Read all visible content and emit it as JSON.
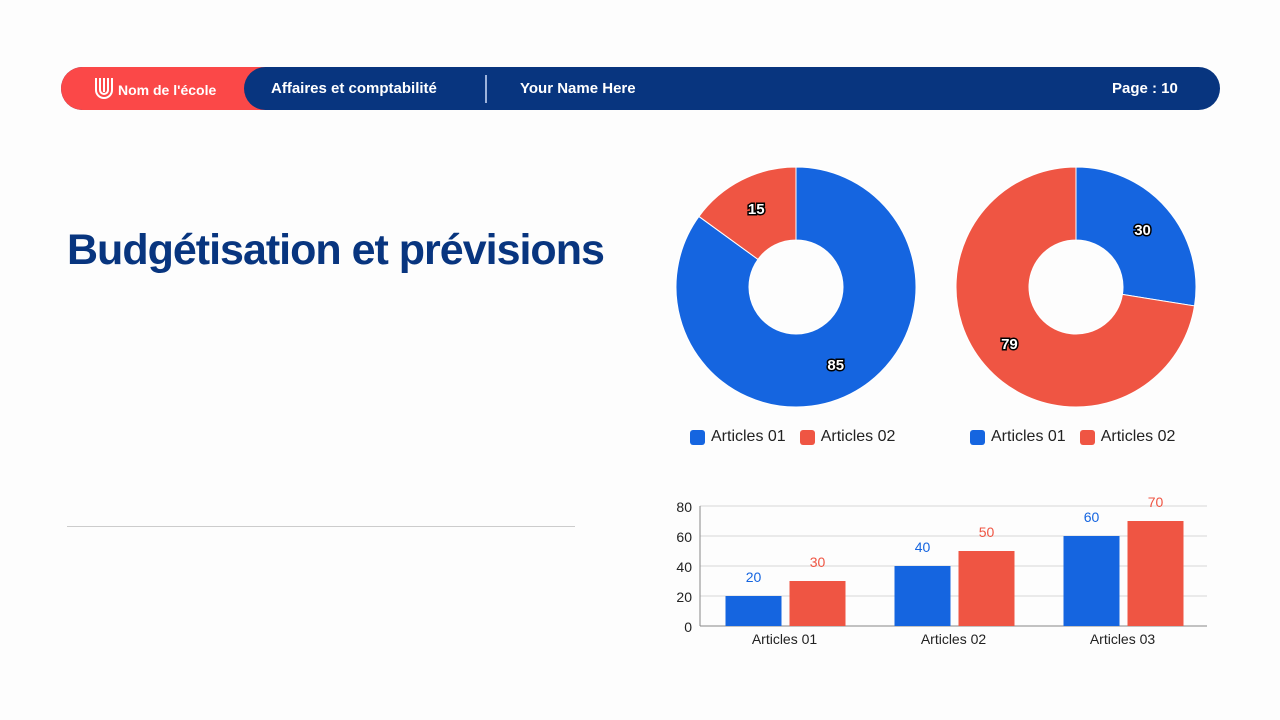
{
  "header": {
    "school": "Nom de l'école",
    "course": "Affaires et comptabilité",
    "name": "Your Name Here",
    "page": "Page : 10",
    "logo_icon": "u-shield-logo"
  },
  "title": "Budgétisation et prévisions",
  "colors": {
    "blue": "#1565e0",
    "red": "#ef5543",
    "navy": "#08357f",
    "header_red": "#fb4848"
  },
  "chart_data": [
    {
      "type": "pie",
      "donut": true,
      "categories": [
        "Articles 01",
        "Articles 02"
      ],
      "values": [
        85,
        15
      ],
      "legend": "bottom"
    },
    {
      "type": "pie",
      "donut": true,
      "categories": [
        "Articles 01",
        "Articles 02"
      ],
      "values": [
        30,
        79
      ],
      "legend": "bottom"
    },
    {
      "type": "bar",
      "categories": [
        "Articles 01",
        "Articles 02",
        "Articles 03"
      ],
      "series": [
        {
          "values": [
            20,
            40,
            60
          ]
        },
        {
          "values": [
            30,
            50,
            70
          ]
        }
      ],
      "ylim": [
        0,
        80
      ],
      "yticks": [
        "0",
        "20",
        "40",
        "60",
        "80"
      ],
      "grid": true,
      "data_labels": true
    }
  ]
}
